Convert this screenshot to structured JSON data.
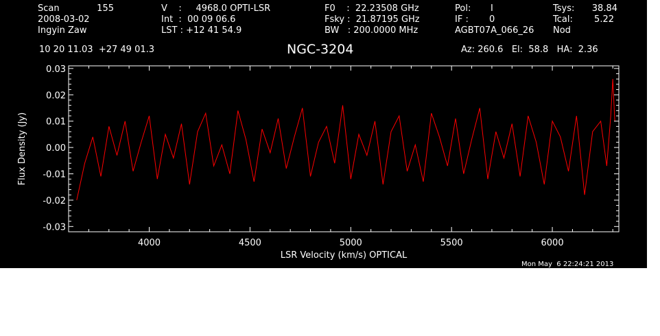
{
  "header": {
    "col1": {
      "scan_label": "Scan",
      "scan_value": "155",
      "date": "2008-03-02",
      "observer": "Ingyin Zaw",
      "coords": "10 20 11.03  +27 49 01.3"
    },
    "col2": {
      "v_line": "V    :     4968.0 OPTI-LSR",
      "int_line": "Int  :  00 09 06.6",
      "lst_line": "LST : +12 41 54.9"
    },
    "col3": {
      "f0_line": "F0    :  22.23508 GHz",
      "fsky_line": "Fsky :  21.87195 GHz",
      "bw_line": "BW   : 200.0000 MHz"
    },
    "col4": {
      "pol_label": "Pol:",
      "pol_value": "I",
      "if_label": "IF :",
      "if_value": "0",
      "project": "AGBT07A_066_26"
    },
    "col5": {
      "tsys_label": "Tsys:",
      "tsys_value": "38.84",
      "tcal_label": "Tcal:",
      "tcal_value": "5.22",
      "nod": "Nod"
    },
    "title": "NGC-3204",
    "az_line": "Az: 260.6   El:  58.8   HA:  2.36"
  },
  "footer": {
    "timestamp": "Mon May  6 22:24:21 2013"
  },
  "colors": {
    "background": "#000000",
    "axes": "#ffffff",
    "series": "#ff0000"
  },
  "chart_data": {
    "type": "line",
    "xlabel": "LSR Velocity (km/s) OPTICAL",
    "ylabel": "Flux Density (Jy)",
    "xlim": [
      3600,
      6330
    ],
    "ylim": [
      -0.032,
      0.031
    ],
    "x_ticks": [
      4000,
      4500,
      5000,
      5500,
      6000
    ],
    "x_tick_labels": [
      "4000",
      "4500",
      "5000",
      "5500",
      "6000"
    ],
    "y_ticks": [
      -0.03,
      -0.02,
      -0.01,
      0.0,
      0.01,
      0.02,
      0.03
    ],
    "y_tick_labels": [
      "-0.03",
      "-0.02",
      "-0.01",
      "0.00",
      "0.01",
      "0.02",
      "0.03"
    ],
    "series": [
      {
        "color": "#ff0000",
        "x": [
          3640,
          3680,
          3720,
          3760,
          3800,
          3840,
          3880,
          3920,
          3960,
          4000,
          4040,
          4080,
          4120,
          4160,
          4200,
          4240,
          4280,
          4320,
          4360,
          4400,
          4440,
          4480,
          4520,
          4560,
          4600,
          4640,
          4680,
          4720,
          4760,
          4800,
          4840,
          4880,
          4920,
          4960,
          5000,
          5040,
          5080,
          5120,
          5160,
          5200,
          5240,
          5280,
          5320,
          5360,
          5400,
          5440,
          5480,
          5520,
          5560,
          5600,
          5640,
          5680,
          5720,
          5760,
          5800,
          5840,
          5880,
          5920,
          5960,
          6000,
          6040,
          6080,
          6120,
          6160,
          6200,
          6240,
          6270,
          6290,
          6300,
          6310
        ],
        "y": [
          -0.02,
          -0.006,
          0.004,
          -0.011,
          0.008,
          -0.003,
          0.01,
          -0.009,
          0.002,
          0.012,
          -0.012,
          0.005,
          -0.004,
          0.009,
          -0.014,
          0.006,
          0.013,
          -0.007,
          0.001,
          -0.01,
          0.014,
          0.003,
          -0.013,
          0.007,
          -0.002,
          0.011,
          -0.008,
          0.004,
          0.015,
          -0.011,
          0.002,
          0.008,
          -0.006,
          0.016,
          -0.012,
          0.005,
          -0.003,
          0.01,
          -0.014,
          0.006,
          0.012,
          -0.009,
          0.001,
          -0.013,
          0.013,
          0.004,
          -0.007,
          0.011,
          -0.01,
          0.003,
          0.015,
          -0.012,
          0.006,
          -0.004,
          0.009,
          -0.011,
          0.012,
          0.002,
          -0.014,
          0.01,
          0.004,
          -0.009,
          0.012,
          -0.018,
          0.006,
          0.01,
          -0.007,
          0.012,
          0.026,
          0.01
        ]
      }
    ]
  }
}
